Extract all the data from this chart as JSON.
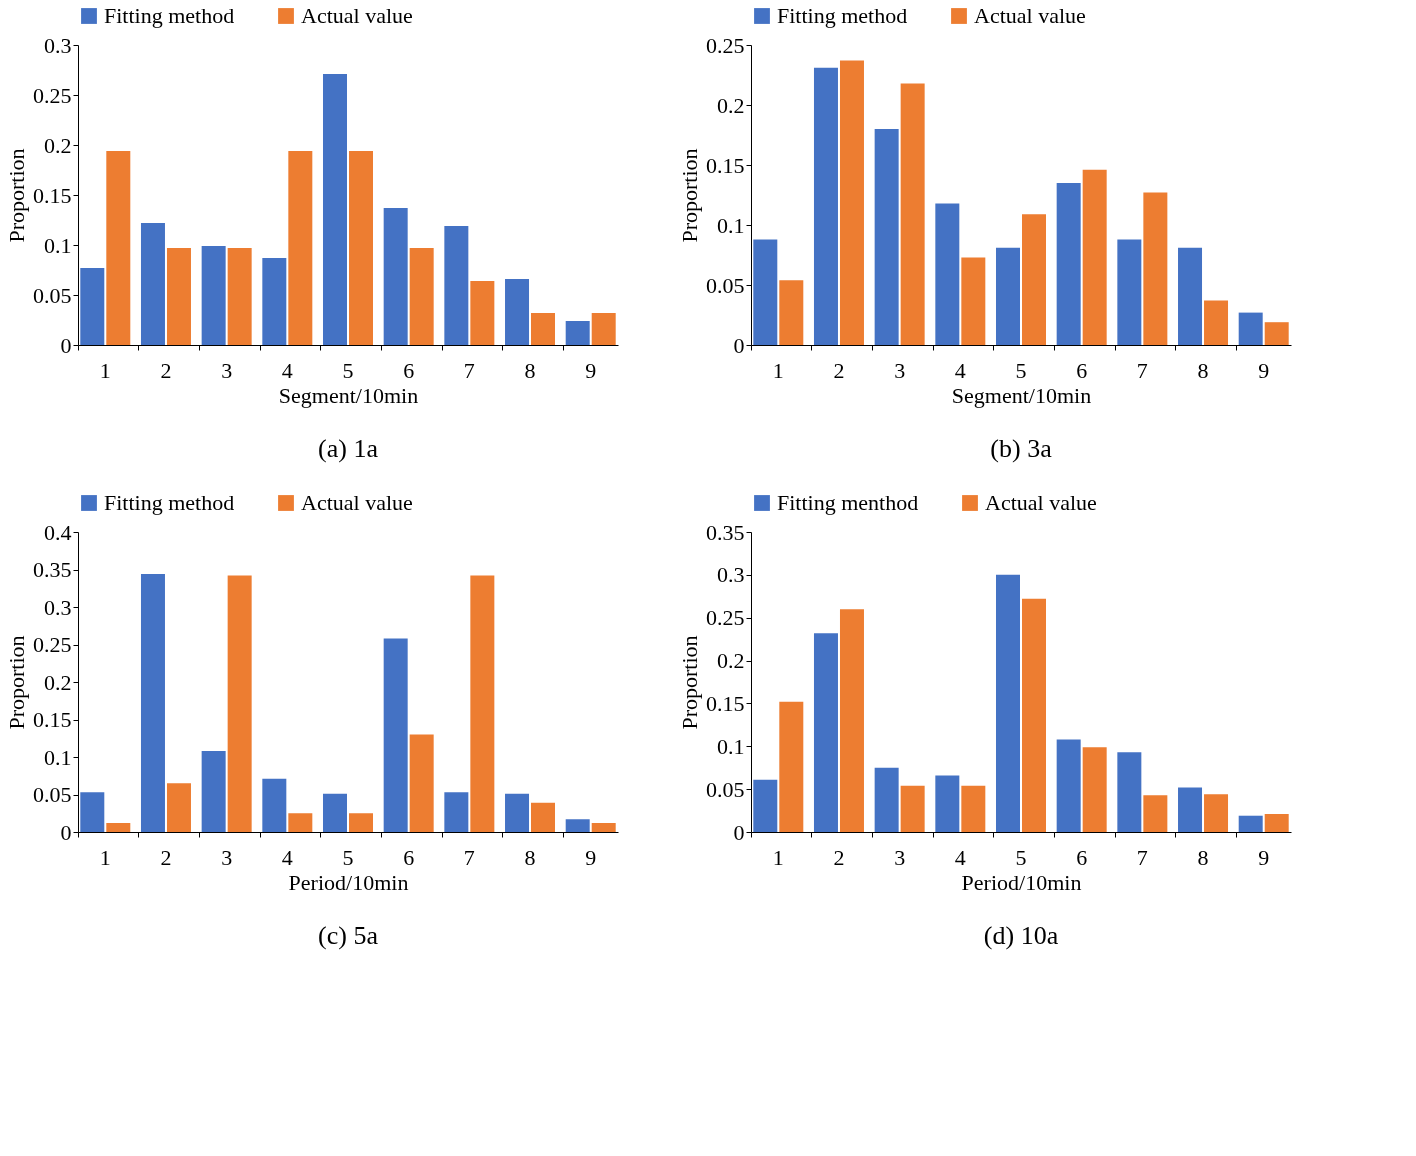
{
  "chart_data": [
    {
      "type": "bar",
      "title": "(a) 1a",
      "xlabel": "Segment/10min",
      "ylabel": "Proportion",
      "categories": [
        "1",
        "2",
        "3",
        "4",
        "5",
        "6",
        "7",
        "8",
        "9"
      ],
      "legend": "top",
      "grid": false,
      "ylim": [
        0,
        0.3
      ],
      "yticks": [
        0,
        0.05,
        0.1,
        0.15,
        0.2,
        0.25,
        0.3
      ],
      "series": [
        {
          "name": "Fitting method",
          "color": "#4472c4",
          "values": [
            0.077,
            0.122,
            0.099,
            0.087,
            0.271,
            0.137,
            0.119,
            0.066,
            0.024
          ]
        },
        {
          "name": "Actual value",
          "color": "#ed7d31",
          "values": [
            0.194,
            0.097,
            0.097,
            0.194,
            0.194,
            0.097,
            0.064,
            0.032,
            0.032
          ]
        }
      ]
    },
    {
      "type": "bar",
      "title": "(b) 3a",
      "xlabel": "Segment/10min",
      "ylabel": "Proportion",
      "categories": [
        "1",
        "2",
        "3",
        "4",
        "5",
        "6",
        "7",
        "8",
        "9"
      ],
      "legend": "top",
      "grid": false,
      "ylim": [
        0,
        0.25
      ],
      "yticks": [
        0,
        0.05,
        0.1,
        0.15,
        0.2,
        0.25
      ],
      "series": [
        {
          "name": "Fitting method",
          "color": "#4472c4",
          "values": [
            0.088,
            0.231,
            0.18,
            0.118,
            0.081,
            0.135,
            0.088,
            0.081,
            0.027
          ]
        },
        {
          "name": "Actual value",
          "color": "#ed7d31",
          "values": [
            0.054,
            0.237,
            0.218,
            0.073,
            0.109,
            0.146,
            0.127,
            0.037,
            0.019
          ]
        }
      ]
    },
    {
      "type": "bar",
      "title": "(c) 5a",
      "xlabel": "Period/10min",
      "ylabel": "Proportion",
      "categories": [
        "1",
        "2",
        "3",
        "4",
        "5",
        "6",
        "7",
        "8",
        "9"
      ],
      "legend": "top",
      "grid": false,
      "ylim": [
        0,
        0.4
      ],
      "yticks": [
        0,
        0.05,
        0.1,
        0.15,
        0.2,
        0.25,
        0.3,
        0.35,
        0.4
      ],
      "series": [
        {
          "name": "Fitting method",
          "color": "#4472c4",
          "values": [
            0.053,
            0.344,
            0.108,
            0.071,
            0.051,
            0.258,
            0.053,
            0.051,
            0.017
          ]
        },
        {
          "name": "Actual value",
          "color": "#ed7d31",
          "values": [
            0.012,
            0.065,
            0.342,
            0.025,
            0.025,
            0.13,
            0.342,
            0.039,
            0.012
          ]
        }
      ]
    },
    {
      "type": "bar",
      "title": "(d) 10a",
      "xlabel": "Period/10min",
      "ylabel": "Proportion",
      "categories": [
        "1",
        "2",
        "3",
        "4",
        "5",
        "6",
        "7",
        "8",
        "9"
      ],
      "legend": "top",
      "grid": false,
      "ylim": [
        0,
        0.35
      ],
      "yticks": [
        0,
        0.05,
        0.1,
        0.15,
        0.2,
        0.25,
        0.3,
        0.35
      ],
      "series": [
        {
          "name": "Fitting menthod",
          "color": "#4472c4",
          "values": [
            0.061,
            0.232,
            0.075,
            0.066,
            0.3,
            0.108,
            0.093,
            0.052,
            0.019
          ]
        },
        {
          "name": "Actual value",
          "color": "#ed7d31",
          "values": [
            0.152,
            0.26,
            0.054,
            0.054,
            0.272,
            0.099,
            0.043,
            0.044,
            0.021
          ]
        }
      ]
    }
  ]
}
